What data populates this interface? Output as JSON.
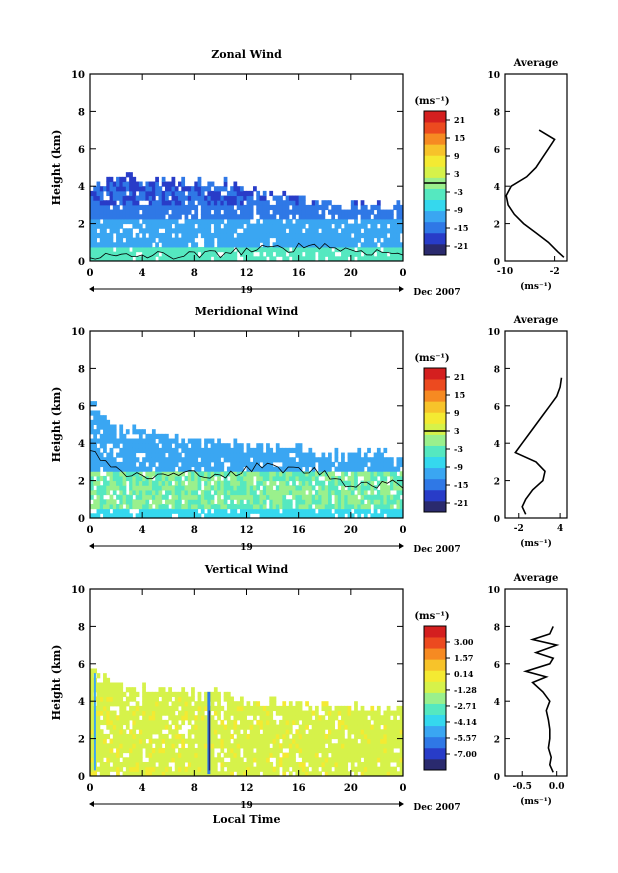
{
  "x_axis_title": "Local Time",
  "date_label": "Dec 2007",
  "day_label": "19",
  "y_axis_title": "Height (km)",
  "unit_label": "(ms⁻¹)",
  "profile_title": "Average",
  "profile_unit": "(ms⁻¹)",
  "colors": [
    "#2a2a6e",
    "#283cc8",
    "#2f78e6",
    "#3aa6f2",
    "#35d8ee",
    "#55e8c0",
    "#9af08c",
    "#d6f24a",
    "#f4ea32",
    "#f7c32a",
    "#f68a22",
    "#ec4a1f",
    "#d41f1f"
  ],
  "chart_data": [
    {
      "type": "heatmap",
      "title": "Zonal Wind",
      "ylabel": "Height (km)",
      "xlabel": "",
      "xlim": [
        0,
        24
      ],
      "ylim": [
        0,
        10
      ],
      "xticks": [
        "0",
        "4",
        "8",
        "12",
        "16",
        "20",
        "0"
      ],
      "yticks": [
        "0",
        "2",
        "4",
        "6",
        "8",
        "10"
      ],
      "colorbar": {
        "ticks": [
          "21",
          "15",
          "9",
          "3",
          "-3",
          "-9",
          "-15",
          "-21"
        ],
        "min": -24,
        "max": 24,
        "zero_line": 0
      },
      "echo_top_km": [
        3.8,
        4.6,
        4.3,
        4.2,
        4.1,
        4.0,
        3.6,
        3.4,
        3.1,
        2.9,
        2.8,
        2.9
      ],
      "contour_top_km": [
        0.3,
        0.2,
        0.3,
        0.3,
        0.3,
        0.5,
        0.6,
        0.7,
        0.9,
        0.6,
        0.5,
        0.4
      ],
      "profile": {
        "title": "Average",
        "xticks": [
          "-10",
          "-2"
        ],
        "xlim": [
          -10,
          0
        ],
        "height_km": [
          0.2,
          0.5,
          1.0,
          1.5,
          2.0,
          2.5,
          3.0,
          3.5,
          4.0,
          4.5,
          5.0,
          5.5,
          6.0,
          6.5,
          7.0
        ],
        "values": [
          -0.5,
          -1.5,
          -3.0,
          -5.0,
          -7.0,
          -8.5,
          -9.5,
          -9.8,
          -9.0,
          -6.5,
          -5.0,
          -4.0,
          -3.0,
          -2.0,
          -4.5
        ]
      }
    },
    {
      "type": "heatmap",
      "title": "Meridional Wind",
      "ylabel": "Height (km)",
      "xlabel": "",
      "xlim": [
        0,
        24
      ],
      "ylim": [
        0,
        10
      ],
      "xticks": [
        "0",
        "4",
        "8",
        "12",
        "16",
        "20",
        "0"
      ],
      "yticks": [
        "0",
        "2",
        "4",
        "6",
        "8",
        "10"
      ],
      "colorbar": {
        "ticks": [
          "21",
          "15",
          "9",
          "3",
          "-3",
          "-9",
          "-15",
          "-21"
        ],
        "min": -24,
        "max": 24,
        "zero_line": 3
      },
      "echo_top_km": [
        6.0,
        4.6,
        4.4,
        4.1,
        4.0,
        3.9,
        3.8,
        3.5,
        3.4,
        3.2,
        3.3,
        3.4
      ],
      "contour_top_km": [
        3.8,
        2.4,
        2.2,
        2.3,
        2.4,
        2.3,
        2.8,
        2.6,
        2.5,
        1.9,
        1.8,
        1.8
      ],
      "profile": {
        "title": "Average",
        "xticks": [
          "-2",
          "4"
        ],
        "xlim": [
          -4,
          5
        ],
        "height_km": [
          0.2,
          0.6,
          1.0,
          1.5,
          2.0,
          2.5,
          3.0,
          3.5,
          4.0,
          4.5,
          5.0,
          5.5,
          6.0,
          6.5,
          7.0,
          7.5
        ],
        "values": [
          -1.0,
          -1.5,
          -1.0,
          0.0,
          1.5,
          1.8,
          0.5,
          -2.5,
          -1.5,
          -0.5,
          0.5,
          1.5,
          2.5,
          3.5,
          4.0,
          4.2
        ]
      }
    },
    {
      "type": "heatmap",
      "title": "Vertical Wind",
      "ylabel": "Height (km)",
      "xlabel": "Local Time",
      "xlim": [
        0,
        24
      ],
      "ylim": [
        0,
        10
      ],
      "xticks": [
        "0",
        "4",
        "8",
        "12",
        "16",
        "20",
        "0"
      ],
      "yticks": [
        "0",
        "2",
        "4",
        "6",
        "8",
        "10"
      ],
      "colorbar": {
        "ticks": [
          "3.00",
          "1.57",
          "0.14",
          "-1.28",
          "-2.71",
          "-4.14",
          "-5.57",
          "-7.00"
        ],
        "min": -8.43,
        "max": 4.43,
        "zero_line": null
      },
      "echo_top_km": [
        5.6,
        4.6,
        4.5,
        4.4,
        4.3,
        4.1,
        3.8,
        3.7,
        3.6,
        3.5,
        3.5,
        3.4
      ],
      "contour_top_km": [],
      "profile": {
        "title": "Average",
        "xticks": [
          "-0.5",
          "0.0"
        ],
        "xlim": [
          -0.75,
          0.15
        ],
        "height_km": [
          0.2,
          0.6,
          1.0,
          1.5,
          2.0,
          2.5,
          3.0,
          3.5,
          4.0,
          4.5,
          5.0,
          5.3,
          5.6,
          6.0,
          6.3,
          6.6,
          7.0,
          7.3,
          7.6,
          8.0
        ],
        "values": [
          -0.05,
          -0.1,
          -0.08,
          -0.12,
          -0.1,
          -0.1,
          -0.12,
          -0.15,
          -0.1,
          -0.2,
          -0.35,
          -0.15,
          -0.45,
          -0.1,
          -0.05,
          -0.3,
          0.0,
          -0.35,
          -0.1,
          -0.05
        ]
      }
    }
  ]
}
